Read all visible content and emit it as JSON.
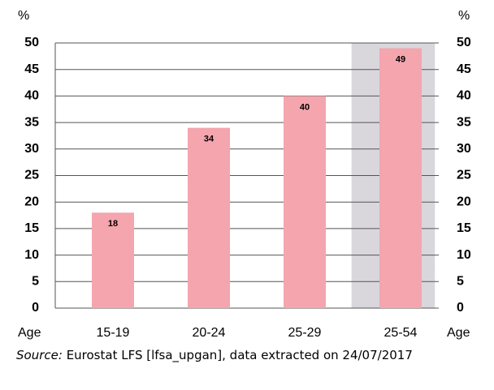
{
  "chart_data": {
    "type": "bar",
    "categories": [
      "15-19",
      "20-24",
      "25-29",
      "25-54"
    ],
    "values": [
      18,
      34,
      40,
      49
    ],
    "color": "#f4a5ae",
    "highlight_category": 3,
    "highlight_color": "#d9d7dc",
    "ylim": [
      0,
      50
    ],
    "yticks": [
      0,
      5,
      10,
      15,
      20,
      25,
      30,
      35,
      40,
      45,
      50
    ],
    "y2lim": [
      0,
      50
    ],
    "y2ticks": [
      0,
      5,
      10,
      15,
      20,
      25,
      30,
      35,
      40,
      45,
      50
    ],
    "y_label": "%",
    "y2_label": "%",
    "x_label": "Age",
    "x_label_right": "Age",
    "grid": true,
    "source_label": "Source:",
    "source_text": "Eurostat LFS [lfsa_upgan], data extracted on 24/07/2017"
  }
}
